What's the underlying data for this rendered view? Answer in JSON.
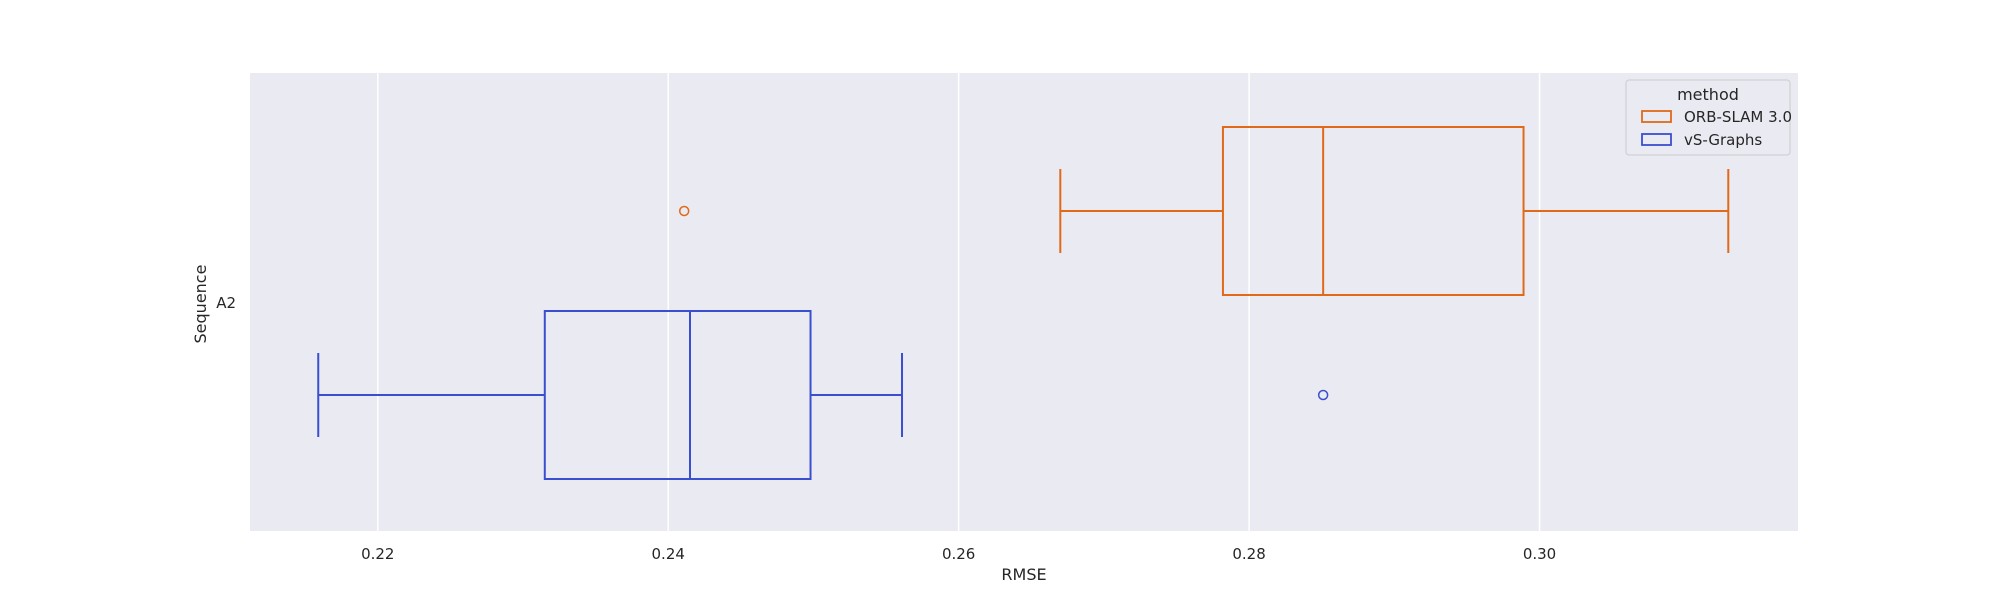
{
  "chart_data": {
    "type": "boxplot",
    "orientation": "horizontal",
    "xlabel": "RMSE",
    "ylabel": "Sequence",
    "xlim": [
      0.2112,
      0.3178
    ],
    "xticks": [
      0.22,
      0.24,
      0.26,
      0.28,
      0.3
    ],
    "xtick_labels": [
      "0.22",
      "0.24",
      "0.26",
      "0.28",
      "0.30"
    ],
    "categories": [
      "A2"
    ],
    "grid": "vertical",
    "legend": {
      "title": "method",
      "placement": "upper-right",
      "entries": [
        "ORB-SLAM 3.0",
        "vS-Graphs"
      ]
    },
    "series": [
      {
        "name": "ORB-SLAM 3.0",
        "color": "#e0691a",
        "category": "A2",
        "whisker_low": 0.267,
        "q1": 0.2782,
        "median": 0.2851,
        "q3": 0.2989,
        "whisker_high": 0.313,
        "outliers": [
          0.2411
        ]
      },
      {
        "name": "vS-Graphs",
        "color": "#3a4fcf",
        "category": "A2",
        "whisker_low": 0.2159,
        "q1": 0.2315,
        "median": 0.2415,
        "q3": 0.2498,
        "whisker_high": 0.2561,
        "outliers": [
          0.2851
        ]
      }
    ]
  }
}
